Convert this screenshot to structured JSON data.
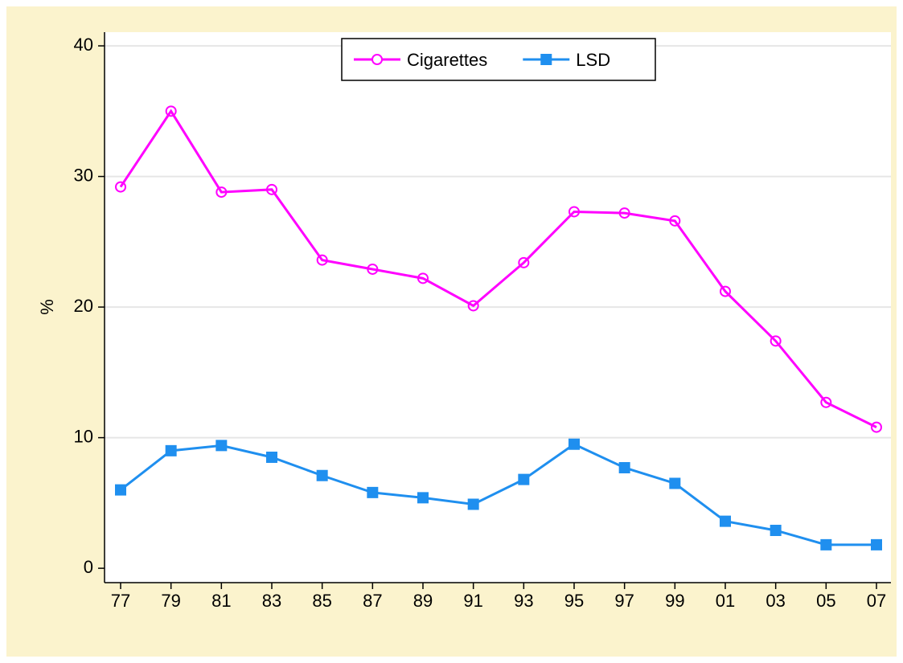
{
  "chart_data": {
    "type": "line",
    "y_label": "%",
    "categories": [
      "77",
      "79",
      "81",
      "83",
      "85",
      "87",
      "89",
      "91",
      "93",
      "95",
      "97",
      "99",
      "01",
      "03",
      "05",
      "07"
    ],
    "series": [
      {
        "name": "Cigarettes",
        "color": "#ff00ff",
        "marker": "hollow-circle",
        "values": [
          29.2,
          35.0,
          28.8,
          29.0,
          23.6,
          22.9,
          22.2,
          20.1,
          23.4,
          27.3,
          27.2,
          26.6,
          21.2,
          17.4,
          12.7,
          10.8
        ]
      },
      {
        "name": "LSD",
        "color": "#1f8fef",
        "marker": "square",
        "values": [
          6.0,
          9.0,
          9.4,
          8.5,
          7.1,
          5.8,
          5.4,
          4.9,
          6.8,
          9.5,
          7.7,
          6.5,
          3.6,
          2.9,
          1.8,
          1.8
        ]
      }
    ],
    "ylim": [
      -1.1,
      41.05
    ],
    "yticks": [
      0,
      10,
      20,
      30,
      40
    ],
    "grid": true,
    "legend": "top"
  }
}
